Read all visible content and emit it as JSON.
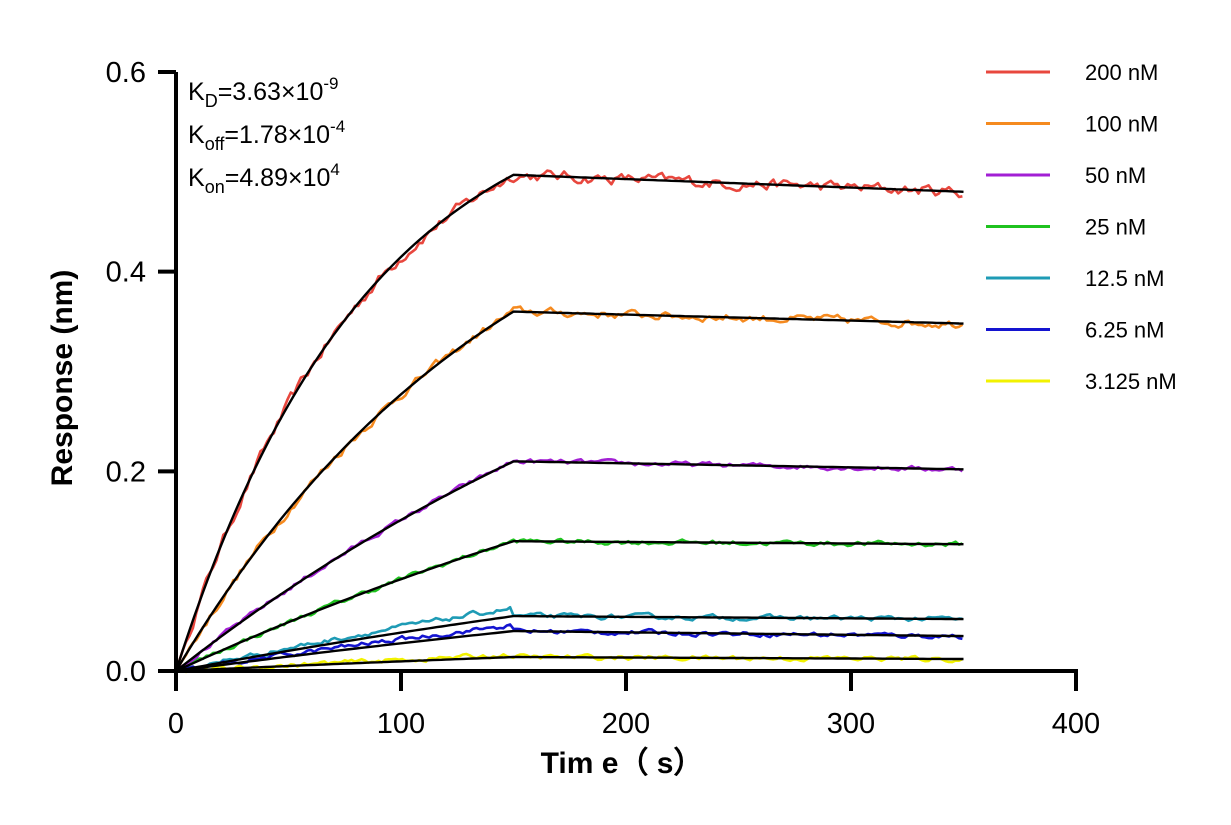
{
  "chart_data": {
    "type": "line",
    "xlabel": "Tim e（ s）",
    "ylabel": "Response (nm)",
    "xlim": [
      0,
      400
    ],
    "ylim": [
      0,
      0.6
    ],
    "x_ticks": [
      "0",
      "100",
      "200",
      "300",
      "400"
    ],
    "y_ticks": [
      "0.0",
      "0.2",
      "0.4",
      "0.6"
    ],
    "grid": false,
    "legend_position": "top-right",
    "association_end_s": 150,
    "end_s": 350,
    "annotations": {
      "kd": {
        "base": "K",
        "sub": "D",
        "mantissa": "=3.63×10",
        "exp": "-9"
      },
      "koff": {
        "base": "K",
        "sub": "off",
        "mantissa": "=1.78×10",
        "exp": "-4"
      },
      "kon": {
        "base": "K",
        "sub": "on",
        "mantissa": "=4.89×10",
        "exp": "4"
      }
    },
    "fit_color": "#000000",
    "series": [
      {
        "name": "200 nM",
        "color": "#e8473e",
        "plateau": 0.497,
        "end": 0.48,
        "tau": 85
      },
      {
        "name": "100 nM",
        "color": "#f58a1f",
        "plateau": 0.36,
        "end": 0.348,
        "tau": 150
      },
      {
        "name": "50 nM",
        "color": "#a21fd4",
        "plateau": 0.21,
        "end": 0.202,
        "tau": 300
      },
      {
        "name": "25 nM",
        "color": "#1fc21f",
        "plateau": 0.13,
        "end": 0.127,
        "tau": 400
      },
      {
        "name": "12.5 nM",
        "color": "#1e9bb5",
        "plateau": 0.055,
        "end": 0.052,
        "tau": 500
      },
      {
        "name": "6.25 nM",
        "color": "#1414d0",
        "plateau": 0.04,
        "end": 0.035,
        "tau": 600
      },
      {
        "name": "3.125 nM",
        "color": "#f2f200",
        "plateau": 0.014,
        "end": 0.012,
        "tau": 700
      }
    ]
  }
}
